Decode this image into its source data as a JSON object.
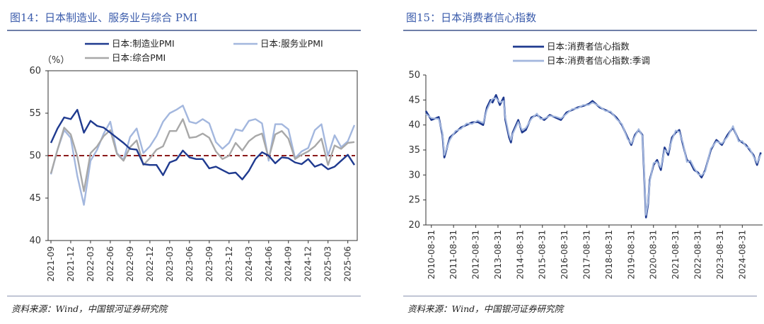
{
  "left": {
    "title": "图14：日本制造业、服务业与综合 PMI",
    "source": "资料来源：Wind，中国银河证券研究院",
    "chart_data": {
      "type": "line",
      "ylabel": "（%）",
      "ylim": [
        40,
        60
      ],
      "yticks": [
        40,
        45,
        50,
        55,
        60
      ],
      "x": [
        "2021-09",
        "2021-10",
        "2021-11",
        "2021-12",
        "2022-01",
        "2022-02",
        "2022-03",
        "2022-04",
        "2022-05",
        "2022-06",
        "2022-07",
        "2022-08",
        "2022-09",
        "2022-10",
        "2022-11",
        "2022-12",
        "2023-01",
        "2023-02",
        "2023-03",
        "2023-04",
        "2023-05",
        "2023-06",
        "2023-07",
        "2023-08",
        "2023-09",
        "2023-10",
        "2023-11",
        "2023-12",
        "2024-01",
        "2024-02",
        "2024-03",
        "2024-04",
        "2024-05",
        "2024-06",
        "2024-07",
        "2024-08",
        "2024-09",
        "2024-10",
        "2024-11",
        "2024-12",
        "2025-01",
        "2025-02",
        "2025-03",
        "2025-04",
        "2025-05",
        "2025-06",
        "2025-07"
      ],
      "xtick_labels": [
        "2021-09",
        "2021-12",
        "2022-03",
        "2022-06",
        "2022-09",
        "2022-12",
        "2023-03",
        "2023-06",
        "2023-09",
        "2023-12",
        "2024-03",
        "2024-06",
        "2024-09",
        "2024-12",
        "2025-03",
        "2025-06"
      ],
      "reference_line": 50,
      "series": [
        {
          "name": "日本:制造业PMI",
          "color": "#1f3a8f",
          "values": [
            51.5,
            53.2,
            54.5,
            54.3,
            55.4,
            52.7,
            54.1,
            53.5,
            53.3,
            52.7,
            52.1,
            51.5,
            50.8,
            50.7,
            49.0,
            48.9,
            48.9,
            47.7,
            49.2,
            49.5,
            50.6,
            49.8,
            49.6,
            49.6,
            48.5,
            48.7,
            48.3,
            47.9,
            48.0,
            47.2,
            48.2,
            49.6,
            50.4,
            50.0,
            49.1,
            49.8,
            49.7,
            49.2,
            49.0,
            49.6,
            48.7,
            49.0,
            48.4,
            48.7,
            49.4,
            50.1,
            48.9
          ]
        },
        {
          "name": "日本:服务业PMI",
          "color": "#a3b7de",
          "values": [
            47.8,
            50.7,
            53.0,
            52.1,
            47.6,
            44.2,
            49.4,
            50.7,
            52.6,
            54.0,
            50.3,
            49.5,
            52.2,
            53.2,
            50.3,
            51.1,
            52.3,
            54.0,
            55.0,
            55.4,
            55.9,
            54.0,
            53.8,
            54.3,
            53.8,
            51.6,
            50.8,
            51.5,
            53.1,
            52.9,
            54.1,
            54.3,
            53.8,
            49.4,
            53.7,
            53.7,
            53.1,
            49.7,
            50.5,
            50.9,
            53.0,
            53.7,
            50.0,
            52.4,
            51.0,
            51.7,
            53.6
          ]
        },
        {
          "name": "日本:综合PMI",
          "color": "#a8a8a8",
          "values": [
            47.9,
            50.7,
            53.3,
            52.5,
            49.9,
            45.8,
            50.3,
            51.1,
            52.3,
            53.0,
            50.2,
            49.4,
            51.0,
            51.8,
            48.9,
            49.7,
            50.7,
            51.1,
            52.9,
            52.9,
            54.3,
            52.1,
            52.2,
            52.6,
            52.1,
            50.5,
            49.6,
            50.0,
            51.5,
            50.6,
            51.7,
            52.3,
            52.6,
            49.7,
            52.5,
            52.9,
            52.0,
            49.6,
            50.1,
            50.5,
            51.1,
            52.0,
            48.9,
            51.2,
            50.8,
            51.5,
            51.6
          ]
        }
      ]
    }
  },
  "right": {
    "title": "图15：日本消费者信心指数",
    "source": "资料来源：Wind，中国银河证券研究院",
    "chart_data": {
      "type": "line",
      "ylim": [
        20,
        50
      ],
      "yticks": [
        20,
        25,
        30,
        35,
        40,
        45,
        50
      ],
      "xtick_labels": [
        "2010-08-31",
        "2011-08-31",
        "2012-08-31",
        "2013-08-31",
        "2014-08-31",
        "2015-08-31",
        "2016-08-31",
        "2017-08-31",
        "2018-08-31",
        "2019-08-31",
        "2020-08-31",
        "2021-08-31",
        "2022-08-31",
        "2023-08-31",
        "2024-08-31"
      ],
      "x_start": "2010-05-31",
      "x_end": "2025-07-31",
      "series": [
        {
          "name": "日本:消费者信心指数",
          "color": "#1f3a8f",
          "x_year": [
            2010.42,
            2010.67,
            2011.0,
            2011.17,
            2011.25,
            2011.5,
            2011.75,
            2012.0,
            2012.25,
            2012.5,
            2012.75,
            2013.0,
            2013.17,
            2013.33,
            2013.42,
            2013.58,
            2013.75,
            2013.92,
            2014.0,
            2014.17,
            2014.25,
            2014.33,
            2014.58,
            2014.75,
            2014.92,
            2015.17,
            2015.42,
            2015.58,
            2015.75,
            2016.0,
            2016.25,
            2016.5,
            2016.75,
            2017.0,
            2017.25,
            2017.5,
            2017.75,
            2017.92,
            2018.0,
            2018.25,
            2018.5,
            2018.75,
            2019.0,
            2019.25,
            2019.5,
            2019.67,
            2019.83,
            2020.0,
            2020.17,
            2020.25,
            2020.33,
            2020.42,
            2020.5,
            2020.67,
            2020.83,
            2021.0,
            2021.17,
            2021.33,
            2021.5,
            2021.67,
            2021.83,
            2022.0,
            2022.17,
            2022.33,
            2022.5,
            2022.67,
            2022.83,
            2023.0,
            2023.25,
            2023.5,
            2023.75,
            2024.0,
            2024.25,
            2024.5,
            2024.67,
            2024.83,
            2025.0,
            2025.17,
            2025.33,
            2025.5
          ],
          "values": [
            42.8,
            41.0,
            41.6,
            38.0,
            33.5,
            37.5,
            38.5,
            39.5,
            40.0,
            40.5,
            40.6,
            40.0,
            43.5,
            45.0,
            44.5,
            46.0,
            44.0,
            45.5,
            41.0,
            37.5,
            36.5,
            38.5,
            41.0,
            38.5,
            39.0,
            41.5,
            42.0,
            41.5,
            41.0,
            42.0,
            41.5,
            41.0,
            42.5,
            43.0,
            43.5,
            43.8,
            44.2,
            44.8,
            44.5,
            43.5,
            43.0,
            42.5,
            41.5,
            40.0,
            37.5,
            36.0,
            38.0,
            39.0,
            38.0,
            30.0,
            21.5,
            24.0,
            29.0,
            32.0,
            33.0,
            31.0,
            35.5,
            34.0,
            37.5,
            38.5,
            39.0,
            36.0,
            33.0,
            32.5,
            31.0,
            30.5,
            29.5,
            31.0,
            35.0,
            37.0,
            36.0,
            38.0,
            39.5,
            37.0,
            36.5,
            36.0,
            35.0,
            34.0,
            32.0,
            34.5
          ]
        },
        {
          "name": "日本:消费者信心指数:季调",
          "color": "#a3b7de",
          "x_year": [
            2010.42,
            2010.67,
            2011.0,
            2011.17,
            2011.25,
            2011.5,
            2011.75,
            2012.0,
            2012.25,
            2012.5,
            2012.75,
            2013.0,
            2013.17,
            2013.33,
            2013.42,
            2013.58,
            2013.75,
            2013.92,
            2014.0,
            2014.17,
            2014.25,
            2014.33,
            2014.58,
            2014.75,
            2014.92,
            2015.17,
            2015.42,
            2015.58,
            2015.75,
            2016.0,
            2016.25,
            2016.5,
            2016.75,
            2017.0,
            2017.25,
            2017.5,
            2017.75,
            2017.92,
            2018.0,
            2018.25,
            2018.5,
            2018.75,
            2019.0,
            2019.25,
            2019.5,
            2019.67,
            2019.83,
            2020.0,
            2020.17,
            2020.25,
            2020.33,
            2020.42,
            2020.5,
            2020.67,
            2020.83,
            2021.0,
            2021.17,
            2021.33,
            2021.5,
            2021.67,
            2021.83,
            2022.0,
            2022.17,
            2022.33,
            2022.5,
            2022.67,
            2022.83,
            2023.0,
            2023.25,
            2023.5,
            2023.75,
            2024.0,
            2024.25,
            2024.5,
            2024.67,
            2024.83,
            2025.0,
            2025.17,
            2025.33,
            2025.5
          ],
          "values": [
            42.2,
            41.4,
            41.2,
            38.5,
            34.0,
            37.0,
            38.8,
            39.2,
            40.3,
            40.2,
            40.9,
            40.4,
            43.0,
            44.6,
            45.2,
            45.4,
            44.5,
            44.8,
            41.5,
            38.0,
            37.0,
            38.2,
            40.6,
            39.0,
            39.4,
            41.2,
            42.3,
            41.2,
            41.3,
            41.8,
            41.7,
            41.3,
            42.2,
            43.2,
            43.3,
            44.0,
            44.0,
            44.5,
            44.3,
            43.7,
            42.8,
            42.7,
            41.2,
            40.2,
            37.2,
            36.3,
            37.7,
            39.2,
            37.8,
            30.5,
            22.0,
            24.4,
            28.6,
            32.4,
            32.6,
            31.5,
            35.0,
            34.5,
            37.0,
            38.9,
            38.6,
            36.4,
            32.6,
            32.9,
            31.4,
            30.2,
            29.9,
            30.7,
            35.3,
            36.7,
            36.3,
            37.6,
            39.8,
            36.7,
            36.8,
            35.7,
            35.3,
            33.7,
            32.4,
            34.1
          ]
        }
      ]
    }
  }
}
